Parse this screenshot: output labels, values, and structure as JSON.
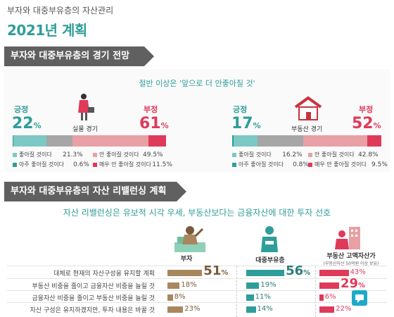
{
  "header": {
    "supertitle": "부자와 대중부유층의 자산관리",
    "title": "2021년 계획"
  },
  "section1": {
    "header": "부자와 대중부유층의 경기 전망",
    "subtitle": "절반 이상은 '앞으로 더 안좋아질 것'"
  },
  "section2": {
    "header": "부자와 대중부유층의 자산 리밸런싱 계획",
    "subtitle": "자산 리밸런싱은 유보적 시각 우세, 부동산보다는 금융자산에 대한 투자 선호"
  },
  "colors": {
    "teal": "#2f9d9a",
    "light_teal": "#7cc8c4",
    "pink": "#e8a0a5",
    "red": "#e03a5a",
    "brown": "#a9875e",
    "gray": "#a6a6a6"
  },
  "chart_data": [
    {
      "type": "bar",
      "center_label": "실물 경기",
      "positive_label": "긍정",
      "negative_label": "부정",
      "positive_total": "22",
      "negative_total": "61",
      "unit": "%",
      "segments": [
        {
          "name": "아주 좋아질 것이다",
          "value": 0.6,
          "value_label": "0.6%",
          "color": "#2f9d9a"
        },
        {
          "name": "좋아질 것이다",
          "value": 21.3,
          "value_label": "21.3%",
          "color": "#7cc8c4"
        },
        {
          "name": "",
          "value": 17.1,
          "value_label": "",
          "color": "#a6a6a6"
        },
        {
          "name": "안 좋아질 것이다",
          "value": 49.5,
          "value_label": "49.5%",
          "color": "#e8a0a5"
        },
        {
          "name": "매우 안 좋아질 것이다",
          "value": 11.5,
          "value_label": "11.5%",
          "color": "#e03a5a"
        }
      ]
    },
    {
      "type": "bar",
      "center_label": "부동산 경기",
      "positive_label": "긍정",
      "negative_label": "부정",
      "positive_total": "17",
      "negative_total": "52",
      "unit": "%",
      "segments": [
        {
          "name": "아주 좋아질 것이다",
          "value": 0.8,
          "value_label": "0.8%",
          "color": "#2f9d9a"
        },
        {
          "name": "좋아질 것이다",
          "value": 16.2,
          "value_label": "16.2%",
          "color": "#7cc8c4"
        },
        {
          "name": "",
          "value": 30.7,
          "value_label": "",
          "color": "#a6a6a6"
        },
        {
          "name": "안 좋아질 것이다",
          "value": 42.8,
          "value_label": "42.8%",
          "color": "#e8a0a5"
        },
        {
          "name": "매우 안 좋아질 것이다",
          "value": 9.5,
          "value_label": "9.5%",
          "color": "#e03a5a"
        }
      ]
    },
    {
      "type": "bar",
      "categories": [
        "대체로 현재의 자산구성을 유지할 계획",
        "부동산 비중을 줄이고 금융자산 비중을 늘릴 것",
        "금융자산 비중을 줄이고 부동산 비중을 늘릴 것",
        "자산 구성은 유지하겠지만, 투자 내용은 바꿀 것"
      ],
      "series": [
        {
          "name": "부자",
          "values": [
            51,
            18,
            8,
            23
          ],
          "labels": [
            "51",
            "18%",
            "8%",
            "23%"
          ],
          "color": "#a9875e"
        },
        {
          "name": "대중부유층",
          "values": [
            56,
            19,
            11,
            14
          ],
          "labels": [
            "56",
            "19%",
            "11%",
            "14%"
          ],
          "color": "#2f9d9a"
        },
        {
          "name": "부동산 고액자산가",
          "subtitle": "(부동산자산 50억원 이상 보유)",
          "values": [
            43,
            29,
            6,
            22
          ],
          "labels": [
            "43%",
            "29",
            "6%",
            "22%"
          ],
          "color": "#e03a5a"
        }
      ]
    }
  ]
}
